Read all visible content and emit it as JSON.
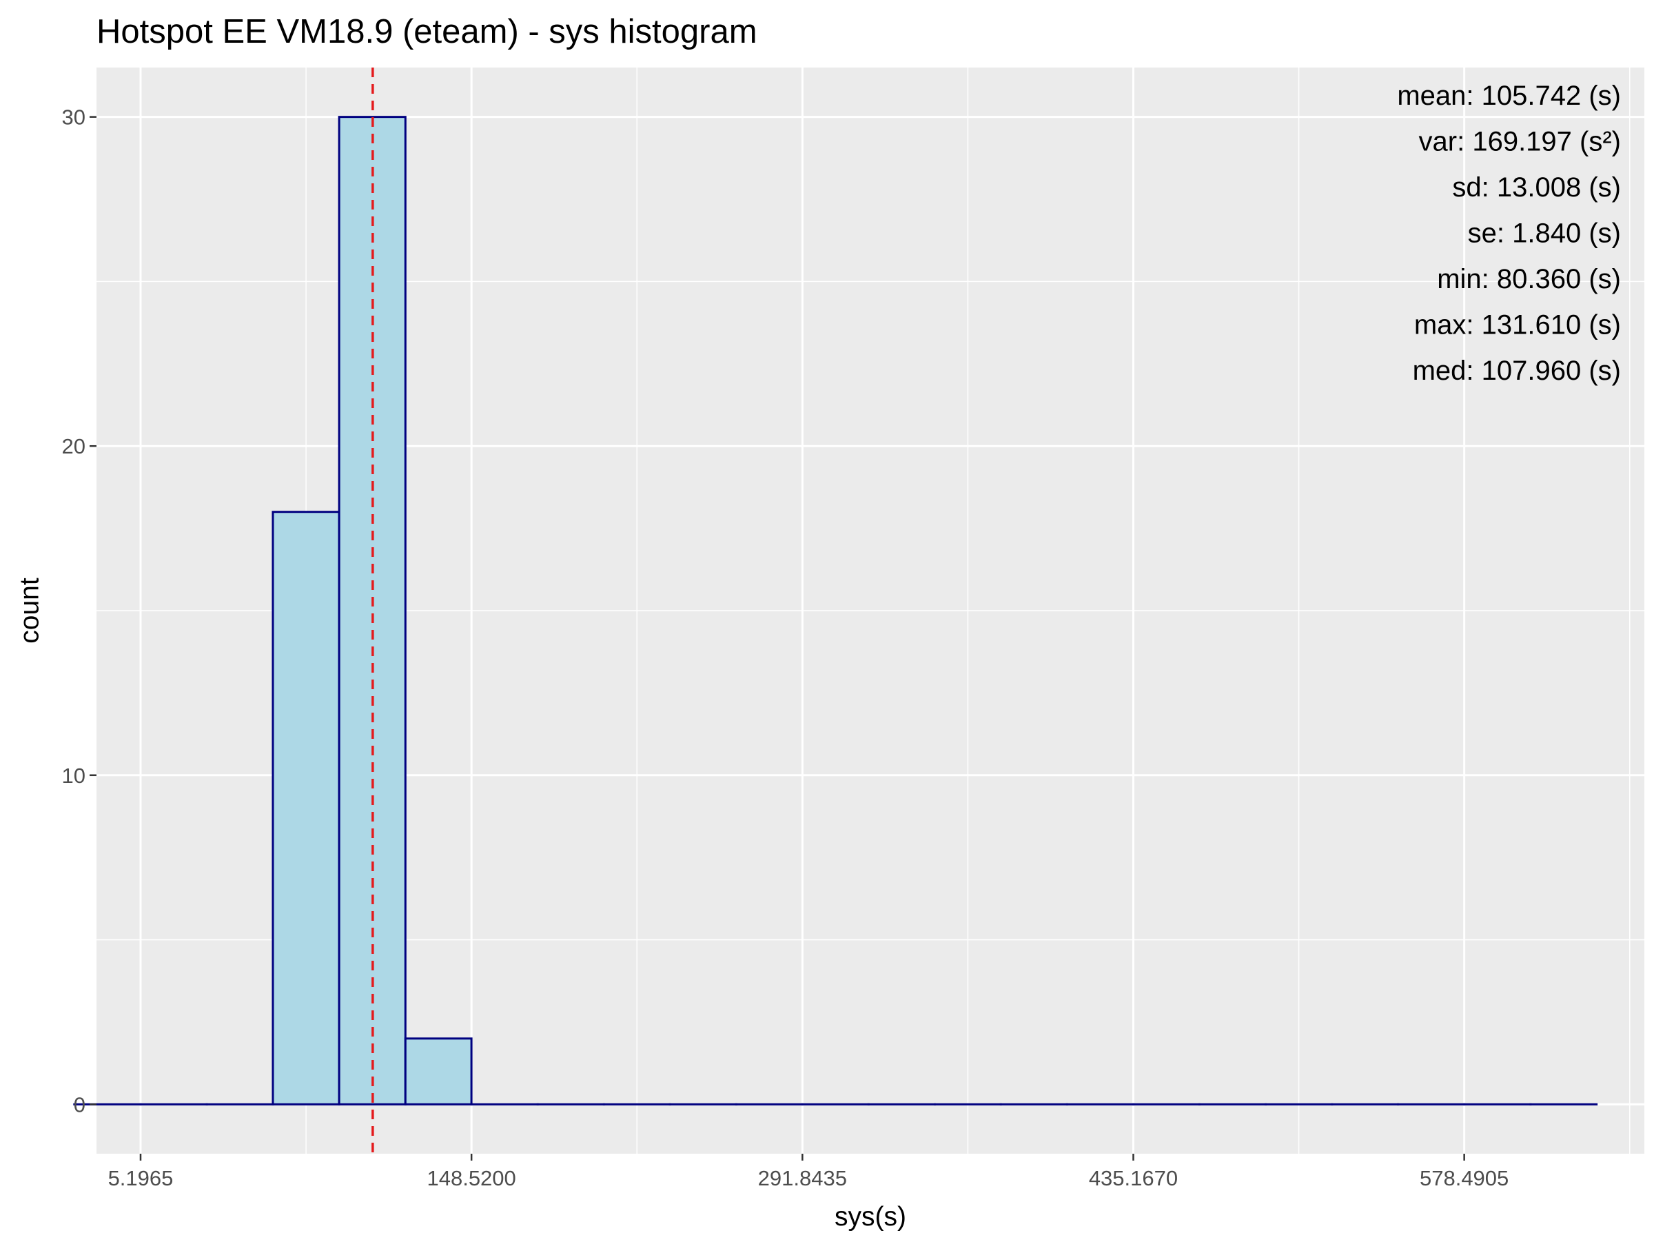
{
  "chart_data": {
    "type": "bar",
    "title": "Hotspot EE VM18.9 (eteam) - sys histogram",
    "xlabel": "sys(s)",
    "ylabel": "count",
    "xlim": [
      -13.9,
      656.5
    ],
    "ylim": [
      -1.5,
      31.5
    ],
    "x_ticks": [
      5.1965,
      148.52,
      291.8435,
      435.167,
      578.4905
    ],
    "x_tick_labels": [
      "5.1965",
      "148.5200",
      "291.8435",
      "435.1670",
      "578.4905"
    ],
    "y_ticks": [
      0,
      10,
      20,
      30
    ],
    "y_tick_labels": [
      "0",
      "10",
      "20",
      "30"
    ],
    "bin_width": 28.66,
    "bins": [
      {
        "x_start": -23.5,
        "x_end": 5.2,
        "count": 0
      },
      {
        "x_start": 5.2,
        "x_end": 33.9,
        "count": 0
      },
      {
        "x_start": 33.9,
        "x_end": 62.5,
        "count": 0
      },
      {
        "x_start": 62.5,
        "x_end": 91.2,
        "count": 18
      },
      {
        "x_start": 91.2,
        "x_end": 119.9,
        "count": 30
      },
      {
        "x_start": 119.9,
        "x_end": 148.5,
        "count": 2
      },
      {
        "x_start": 148.5,
        "x_end": 177.2,
        "count": 0
      },
      {
        "x_start": 177.2,
        "x_end": 205.9,
        "count": 0
      },
      {
        "x_start": 205.9,
        "x_end": 234.5,
        "count": 0
      },
      {
        "x_start": 234.5,
        "x_end": 263.2,
        "count": 0
      },
      {
        "x_start": 263.2,
        "x_end": 291.8,
        "count": 0
      },
      {
        "x_start": 291.8,
        "x_end": 320.5,
        "count": 0
      },
      {
        "x_start": 320.5,
        "x_end": 349.2,
        "count": 0
      },
      {
        "x_start": 349.2,
        "x_end": 377.8,
        "count": 0
      },
      {
        "x_start": 377.8,
        "x_end": 406.5,
        "count": 0
      },
      {
        "x_start": 406.5,
        "x_end": 435.2,
        "count": 0
      },
      {
        "x_start": 435.2,
        "x_end": 463.8,
        "count": 0
      },
      {
        "x_start": 463.8,
        "x_end": 492.5,
        "count": 0
      },
      {
        "x_start": 492.5,
        "x_end": 521.2,
        "count": 0
      },
      {
        "x_start": 521.2,
        "x_end": 549.8,
        "count": 0
      },
      {
        "x_start": 549.8,
        "x_end": 578.5,
        "count": 0
      },
      {
        "x_start": 578.5,
        "x_end": 607.2,
        "count": 0
      },
      {
        "x_start": 607.2,
        "x_end": 635.8,
        "count": 0
      }
    ],
    "mean_line": {
      "x": 105.742,
      "color": "#e41a1c",
      "style": "dashed"
    },
    "stats": [
      "mean: 105.742 (s)",
      "var: 169.197 (s²)",
      "sd: 13.008 (s)",
      "se: 1.840 (s)",
      "min: 80.360 (s)",
      "max: 131.610 (s)",
      "med: 107.960 (s)"
    ],
    "grid": true,
    "colors": {
      "panel_bg": "#ebebeb",
      "grid": "#ffffff",
      "bar_fill": "#add8e6",
      "bar_stroke": "#000080",
      "mean_line": "#e41a1c"
    }
  }
}
